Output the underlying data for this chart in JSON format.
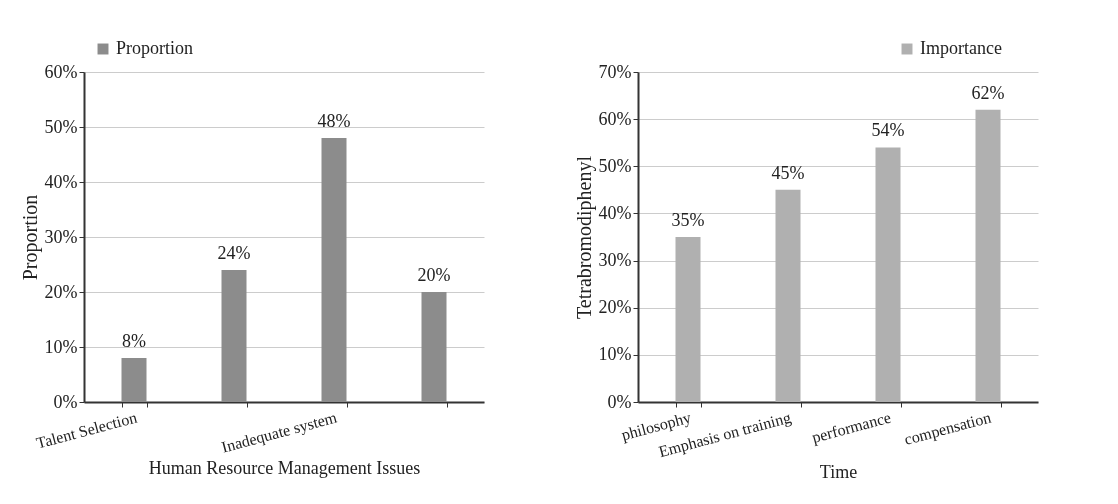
{
  "chart_data": [
    {
      "type": "bar",
      "xlabel": "Human Resource Management Issues",
      "ylabel": "Proportion",
      "categories": [
        "Talent Selection",
        null,
        "Inadequate system",
        null
      ],
      "series": [
        {
          "name": "Proportion",
          "color": "#8c8c8c",
          "values": [
            8,
            24,
            48,
            20
          ]
        }
      ],
      "value_labels": [
        "8%",
        "24%",
        "48%",
        "20%"
      ],
      "ylim": [
        0,
        60
      ],
      "yticks": [
        {
          "value": 0,
          "label": "0%"
        },
        {
          "value": 10,
          "label": "10%"
        },
        {
          "value": 20,
          "label": "20%"
        },
        {
          "value": 30,
          "label": "30%"
        },
        {
          "value": 40,
          "label": "40%"
        },
        {
          "value": 50,
          "label": "50%"
        },
        {
          "value": 60,
          "label": "60%"
        }
      ],
      "grid": "y",
      "legend": "top left"
    },
    {
      "type": "bar",
      "xlabel": "Time",
      "ylabel": "Tetrabromodiphenyl",
      "categories": [
        "philosophy",
        "Emphasis on training",
        "performance",
        "compensation"
      ],
      "series": [
        {
          "name": "Importance",
          "color": "#b0b0b0",
          "values": [
            35,
            45,
            54,
            62
          ]
        }
      ],
      "value_labels": [
        "35%",
        "45%",
        "54%",
        "62%"
      ],
      "ylim": [
        0,
        70
      ],
      "yticks": [
        {
          "value": 0,
          "label": "0%"
        },
        {
          "value": 10,
          "label": "10%"
        },
        {
          "value": 20,
          "label": "20%"
        },
        {
          "value": 30,
          "label": "30%"
        },
        {
          "value": 40,
          "label": "40%"
        },
        {
          "value": 50,
          "label": "50%"
        },
        {
          "value": 60,
          "label": "60%"
        },
        {
          "value": 70,
          "label": "70%"
        }
      ],
      "grid": "y",
      "legend": "top right"
    }
  ]
}
